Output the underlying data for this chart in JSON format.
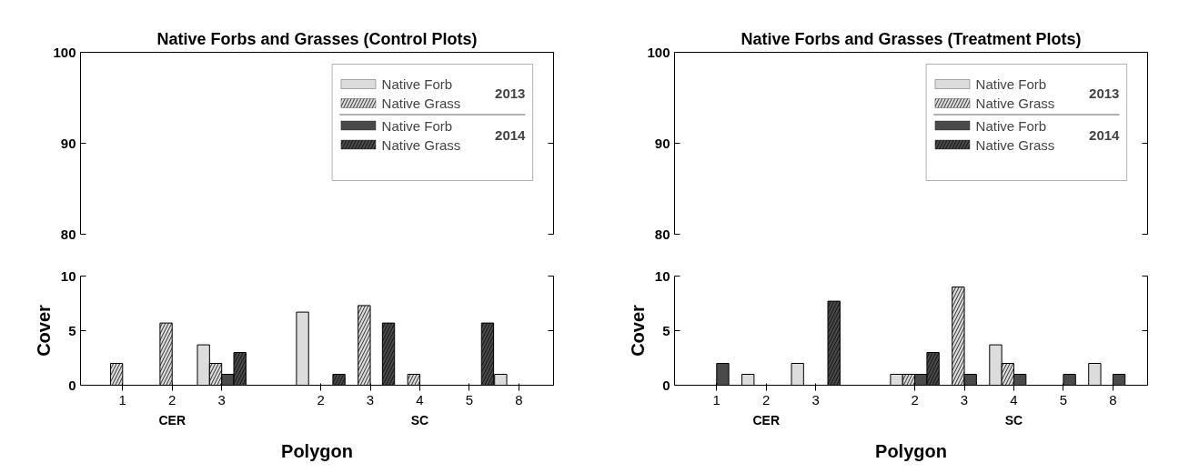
{
  "chart_data": [
    {
      "type": "bar",
      "title": "Native Forbs and Grasses (Control Plots)",
      "categories": [
        "1",
        "2",
        "3",
        null,
        "2",
        "3",
        "4",
        "5",
        "8"
      ],
      "series": [
        {
          "name": "Native Forb",
          "color": "#dcdcdc",
          "values": [
            null,
            null,
            null,
            null,
            null,
            null,
            null,
            null,
            null
          ]
        },
        {
          "name": "Native Grass",
          "color": "#dcdcdc",
          "values": [
            null,
            null,
            null,
            null,
            null,
            null,
            null,
            null,
            null
          ]
        },
        {
          "name": "Native Forb",
          "color": "#4a4a4a",
          "values": [
            null,
            null,
            null,
            null,
            null,
            null,
            null,
            null,
            null
          ]
        },
        {
          "name": "Native Grass",
          "color": "#4a4a4a",
          "values": [
            null,
            null,
            null,
            null,
            null,
            null,
            null,
            null,
            null
          ]
        }
      ],
      "ylim": [
        80,
        100
      ],
      "yticks": [
        80,
        90,
        100
      ],
      "tick_labels": "y",
      "legend": "top right",
      "annotations": [
        "2013",
        "2014"
      ]
    },
    {
      "type": "bar",
      "xlabel": "Polygon",
      "ylabel": "Cover",
      "categories": [
        "1",
        "2",
        "3",
        null,
        "2",
        "3",
        "4",
        "5",
        "8"
      ],
      "series": [
        {
          "color": "#dcdcdc",
          "values": [
            null,
            null,
            3.7,
            null,
            6.7,
            null,
            null,
            null,
            1.0
          ]
        },
        {
          "color": "#dcdcdc",
          "values": [
            2.0,
            5.7,
            2.0,
            null,
            null,
            7.3,
            1.0,
            null,
            null
          ]
        },
        {
          "color": "#4a4a4a",
          "values": [
            null,
            null,
            1.0,
            null,
            null,
            null,
            null,
            null,
            null
          ]
        },
        {
          "color": "#4a4a4a",
          "values": [
            null,
            null,
            3.0,
            null,
            1.0,
            5.7,
            null,
            5.7,
            null
          ]
        }
      ],
      "ylim": [
        0,
        10
      ],
      "yticks": [
        0,
        5,
        10
      ],
      "annotations": [
        "CER",
        "SC"
      ]
    },
    {
      "type": "bar",
      "title": "Native Forbs and Grasses (Treatment Plots)",
      "categories": [
        "1",
        "2",
        "3",
        null,
        "2",
        "3",
        "4",
        "5",
        "8"
      ],
      "series": [
        {
          "name": "Native Forb",
          "color": "#dcdcdc",
          "values": [
            null,
            null,
            null,
            null,
            null,
            null,
            null,
            null,
            null
          ]
        },
        {
          "name": "Native Grass",
          "color": "#dcdcdc",
          "values": [
            null,
            null,
            null,
            null,
            null,
            null,
            null,
            null,
            null
          ]
        },
        {
          "name": "Native Forb",
          "color": "#4a4a4a",
          "values": [
            null,
            null,
            null,
            null,
            null,
            null,
            null,
            null,
            null
          ]
        },
        {
          "name": "Native Grass",
          "color": "#4a4a4a",
          "values": [
            null,
            null,
            null,
            null,
            null,
            null,
            null,
            null,
            null
          ]
        }
      ],
      "ylim": [
        80,
        100
      ],
      "yticks": [
        80,
        90,
        100
      ],
      "tick_labels": "y",
      "legend": "top right",
      "annotations": [
        "2013",
        "2014"
      ]
    },
    {
      "type": "bar",
      "xlabel": "Polygon",
      "ylabel": "Cover",
      "categories": [
        "1",
        "2",
        "3",
        null,
        "2",
        "3",
        "4",
        "5",
        "8"
      ],
      "series": [
        {
          "color": "#dcdcdc",
          "values": [
            null,
            1.0,
            2.0,
            null,
            1.0,
            null,
            3.7,
            null,
            2.0
          ]
        },
        {
          "color": "#dcdcdc",
          "values": [
            null,
            null,
            null,
            null,
            1.0,
            9.0,
            2.0,
            null,
            null
          ]
        },
        {
          "color": "#4a4a4a",
          "values": [
            2.0,
            null,
            null,
            null,
            1.0,
            1.0,
            1.0,
            1.0,
            1.0
          ]
        },
        {
          "color": "#4a4a4a",
          "values": [
            null,
            null,
            7.7,
            null,
            3.0,
            null,
            null,
            null,
            null
          ]
        }
      ],
      "ylim": [
        0,
        10
      ],
      "yticks": [
        0,
        5,
        10
      ],
      "annotations": [
        "CER",
        "SC"
      ]
    }
  ]
}
